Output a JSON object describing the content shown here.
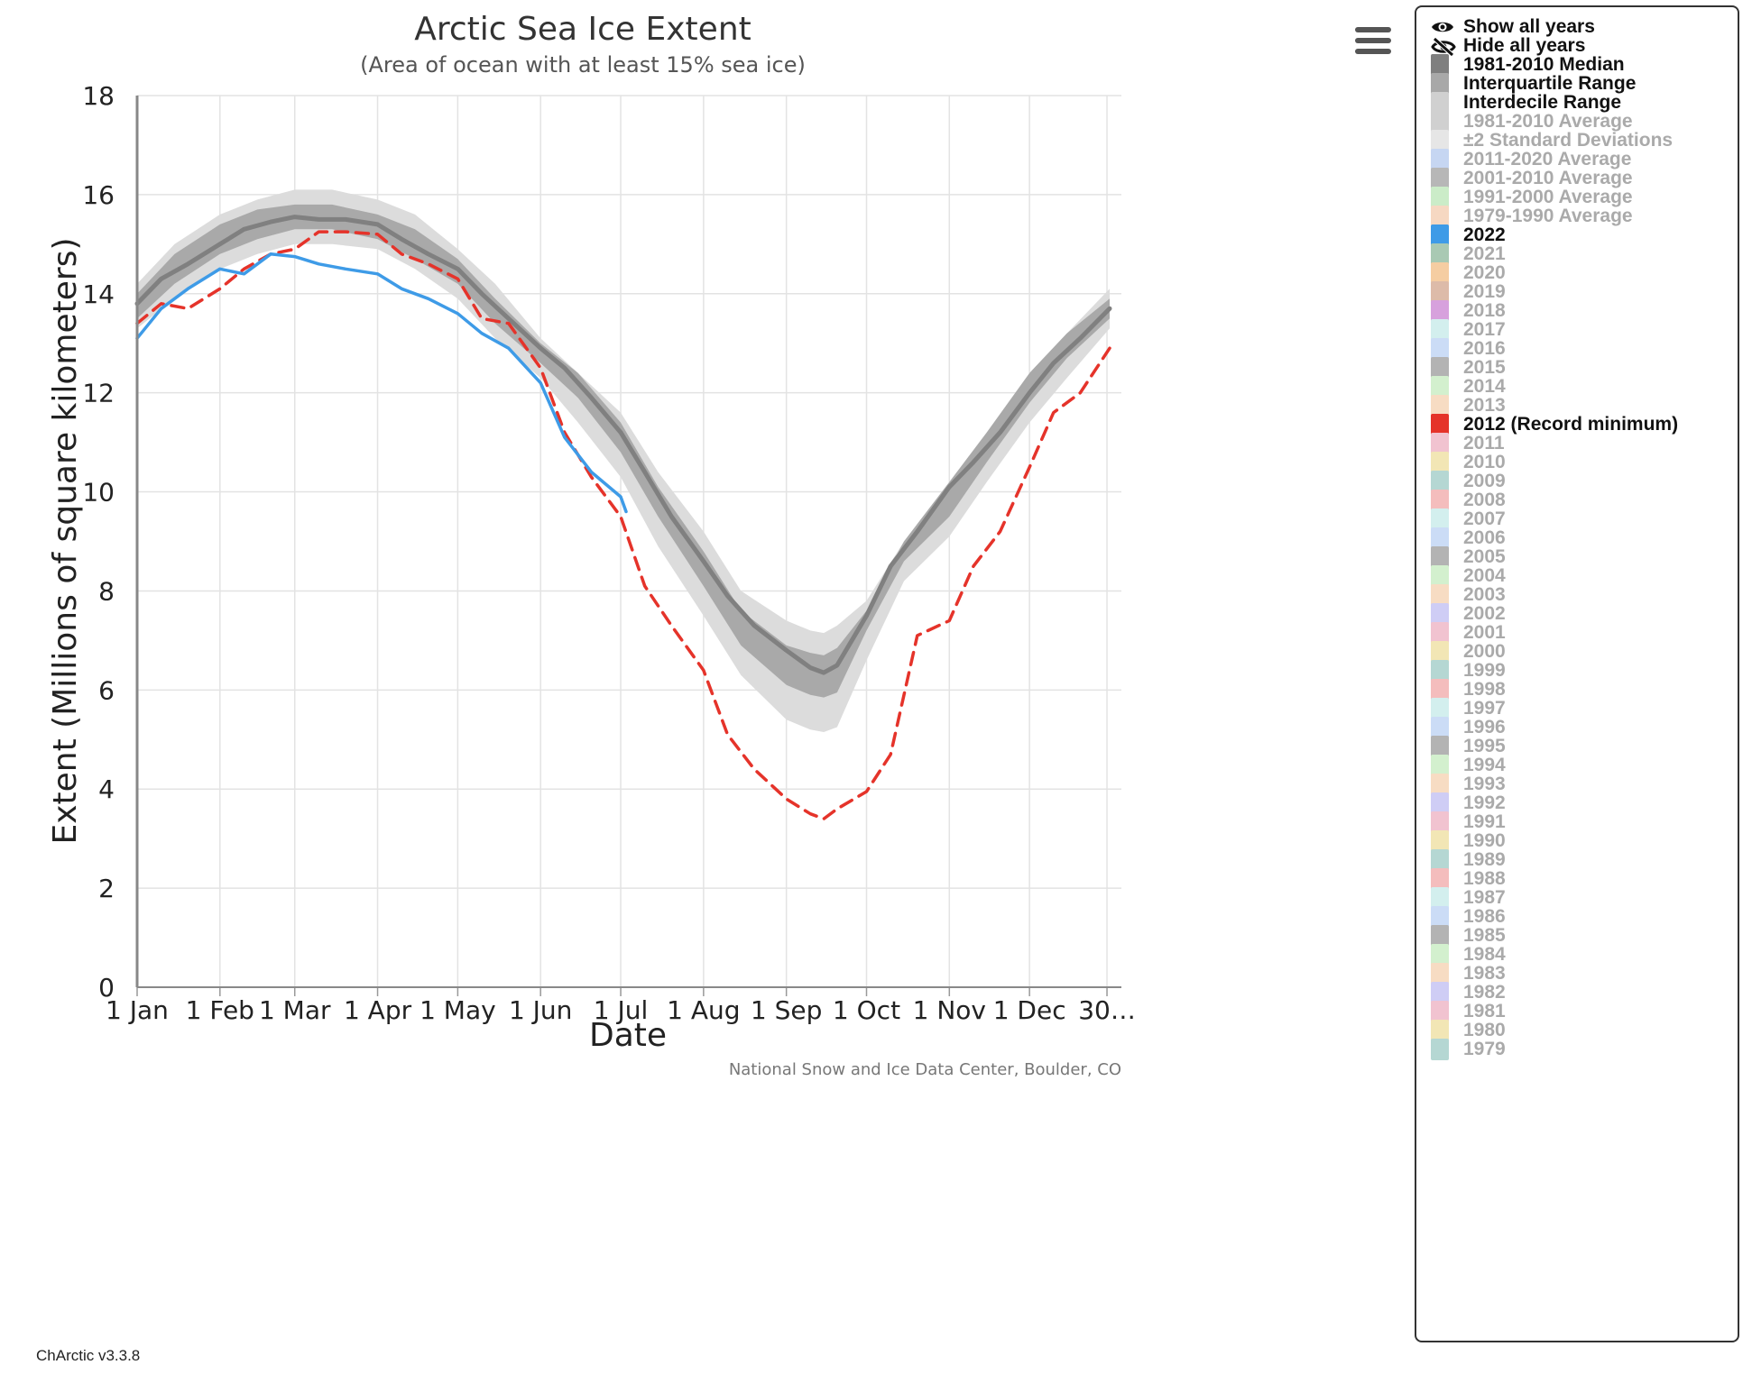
{
  "menu_icon": "hamburger-menu-icon",
  "version": "ChArctic v3.3.8",
  "credit": "National Snow and Ice Data Center, Boulder, CO",
  "legend": {
    "show_all": "Show all years",
    "hide_all": "Hide all years",
    "show_icon": "eye-icon",
    "hide_icon": "eye-slash-icon",
    "items": [
      {
        "label": "1981-2010 Median",
        "color": "#7f7f7f",
        "active": true
      },
      {
        "label": "Interquartile Range",
        "color": "#a8a8a8",
        "active": true
      },
      {
        "label": "Interdecile Range",
        "color": "#d0d0d0",
        "active": true
      },
      {
        "label": "1981-2010 Average",
        "color": "#d0d0d0",
        "active": false
      },
      {
        "label": "±2 Standard Deviations",
        "color": "#e6e6e6",
        "active": false
      },
      {
        "label": "2011-2020 Average",
        "color": "#c6d6f2",
        "active": false
      },
      {
        "label": "2001-2010 Average",
        "color": "#b7b7b7",
        "active": false
      },
      {
        "label": "1991-2000 Average",
        "color": "#cbecc8",
        "active": false
      },
      {
        "label": "1979-1990 Average",
        "color": "#f6d8c2",
        "active": false
      },
      {
        "label": "2022",
        "color": "#3e9be7",
        "active": true
      },
      {
        "label": "2021",
        "color": "#a9c9b3",
        "active": false
      },
      {
        "label": "2020",
        "color": "#f5cda2",
        "active": false
      },
      {
        "label": "2019",
        "color": "#ddbba9",
        "active": false
      },
      {
        "label": "2018",
        "color": "#d7a1dd",
        "active": false
      },
      {
        "label": "2017",
        "color": "#d3efee",
        "active": false
      },
      {
        "label": "2016",
        "color": "#cbdcf6",
        "active": false
      },
      {
        "label": "2015",
        "color": "#b3b3b3",
        "active": false
      },
      {
        "label": "2014",
        "color": "#d3f0ce",
        "active": false
      },
      {
        "label": "2013",
        "color": "#f7dcc3",
        "active": false
      },
      {
        "label": "2012 (Record minimum)",
        "color": "#e5332a",
        "active": true
      },
      {
        "label": "2011",
        "color": "#f1c3d0",
        "active": false
      },
      {
        "label": "2010",
        "color": "#f2e6b5",
        "active": false
      },
      {
        "label": "2009",
        "color": "#b5d7d3",
        "active": false
      },
      {
        "label": "2008",
        "color": "#f4bdbd",
        "active": false
      },
      {
        "label": "2007",
        "color": "#d3efee",
        "active": false
      },
      {
        "label": "2006",
        "color": "#cbdcf6",
        "active": false
      },
      {
        "label": "2005",
        "color": "#b3b3b3",
        "active": false
      },
      {
        "label": "2004",
        "color": "#d3f0ce",
        "active": false
      },
      {
        "label": "2003",
        "color": "#f7dcc3",
        "active": false
      },
      {
        "label": "2002",
        "color": "#cfcdf5",
        "active": false
      },
      {
        "label": "2001",
        "color": "#f1c3d0",
        "active": false
      },
      {
        "label": "2000",
        "color": "#f2e6b5",
        "active": false
      },
      {
        "label": "1999",
        "color": "#b5d7d3",
        "active": false
      },
      {
        "label": "1998",
        "color": "#f4bdbd",
        "active": false
      },
      {
        "label": "1997",
        "color": "#d3efee",
        "active": false
      },
      {
        "label": "1996",
        "color": "#cbdcf6",
        "active": false
      },
      {
        "label": "1995",
        "color": "#b3b3b3",
        "active": false
      },
      {
        "label": "1994",
        "color": "#d3f0ce",
        "active": false
      },
      {
        "label": "1993",
        "color": "#f7dcc3",
        "active": false
      },
      {
        "label": "1992",
        "color": "#cfcdf5",
        "active": false
      },
      {
        "label": "1991",
        "color": "#f1c3d0",
        "active": false
      },
      {
        "label": "1990",
        "color": "#f2e6b5",
        "active": false
      },
      {
        "label": "1989",
        "color": "#b5d7d3",
        "active": false
      },
      {
        "label": "1988",
        "color": "#f4bdbd",
        "active": false
      },
      {
        "label": "1987",
        "color": "#d3efee",
        "active": false
      },
      {
        "label": "1986",
        "color": "#cbdcf6",
        "active": false
      },
      {
        "label": "1985",
        "color": "#b3b3b3",
        "active": false
      },
      {
        "label": "1984",
        "color": "#d3f0ce",
        "active": false
      },
      {
        "label": "1983",
        "color": "#f7dcc3",
        "active": false
      },
      {
        "label": "1982",
        "color": "#cfcdf5",
        "active": false
      },
      {
        "label": "1981",
        "color": "#f1c3d0",
        "active": false
      },
      {
        "label": "1980",
        "color": "#f2e6b5",
        "active": false
      },
      {
        "label": "1979",
        "color": "#b5d7d3",
        "active": false
      }
    ]
  },
  "chart_data": {
    "type": "line",
    "title": "Arctic Sea Ice Extent",
    "subtitle": "(Area of ocean with at least 15% sea ice)",
    "xlabel": "Date",
    "ylabel": "Extent (Millions of square kilometers)",
    "ylim": [
      0,
      18
    ],
    "yticks": [
      0,
      2,
      4,
      6,
      8,
      10,
      12,
      14,
      16,
      18
    ],
    "x_ticks": [
      {
        "label": "1 Jan",
        "date": "01-01"
      },
      {
        "label": "1 Feb",
        "date": "02-01"
      },
      {
        "label": "1 Mar",
        "date": "03-01"
      },
      {
        "label": "1 Apr",
        "date": "04-01"
      },
      {
        "label": "1 May",
        "date": "05-01"
      },
      {
        "label": "1 Jun",
        "date": "06-01"
      },
      {
        "label": "1 Jul",
        "date": "07-01"
      },
      {
        "label": "1 Aug",
        "date": "08-01"
      },
      {
        "label": "1 Sep",
        "date": "09-01"
      },
      {
        "label": "1 Oct",
        "date": "10-01"
      },
      {
        "label": "1 Nov",
        "date": "11-01"
      },
      {
        "label": "1 Dec",
        "date": "12-01"
      },
      {
        "label": "30…",
        "date": "12-30"
      }
    ],
    "grid": true,
    "legend_placement": "right",
    "series": [
      {
        "name": "Interdecile Range",
        "kind": "band",
        "color": "#dcdcdc",
        "x": [
          "01-01",
          "01-15",
          "02-01",
          "02-15",
          "03-01",
          "03-15",
          "04-01",
          "04-15",
          "05-01",
          "05-15",
          "06-01",
          "06-15",
          "07-01",
          "07-15",
          "08-01",
          "08-15",
          "09-01",
          "09-10",
          "09-15",
          "09-20",
          "10-01",
          "10-15",
          "11-01",
          "11-15",
          "12-01",
          "12-15",
          "12-31"
        ],
        "low": [
          13.3,
          13.9,
          14.5,
          14.8,
          15.0,
          15.0,
          14.9,
          14.5,
          13.9,
          13.1,
          12.3,
          11.4,
          10.3,
          8.9,
          7.5,
          6.3,
          5.4,
          5.2,
          5.15,
          5.25,
          6.6,
          8.2,
          9.1,
          10.2,
          11.4,
          12.3,
          13.3
        ],
        "high": [
          14.2,
          15.0,
          15.6,
          15.9,
          16.1,
          16.1,
          15.9,
          15.6,
          14.9,
          14.2,
          13.1,
          12.4,
          11.6,
          10.4,
          9.2,
          8.0,
          7.4,
          7.2,
          7.15,
          7.3,
          7.8,
          9.0,
          10.2,
          11.2,
          12.4,
          13.2,
          14.1
        ]
      },
      {
        "name": "Interquartile Range",
        "kind": "band",
        "color": "#a9a9a9",
        "x": [
          "01-01",
          "01-15",
          "02-01",
          "02-15",
          "03-01",
          "03-15",
          "04-01",
          "04-15",
          "05-01",
          "05-15",
          "06-01",
          "06-15",
          "07-01",
          "07-15",
          "08-01",
          "08-15",
          "09-01",
          "09-10",
          "09-15",
          "09-20",
          "10-01",
          "10-15",
          "11-01",
          "11-15",
          "12-01",
          "12-15",
          "12-31"
        ],
        "low": [
          13.5,
          14.2,
          14.8,
          15.1,
          15.3,
          15.3,
          15.1,
          14.7,
          14.2,
          13.4,
          12.6,
          11.9,
          10.8,
          9.5,
          8.1,
          6.9,
          6.1,
          5.9,
          5.85,
          5.95,
          7.2,
          8.6,
          9.5,
          10.6,
          11.8,
          12.7,
          13.5
        ],
        "high": [
          14.0,
          14.8,
          15.4,
          15.7,
          15.8,
          15.8,
          15.6,
          15.3,
          14.7,
          13.9,
          13.0,
          12.4,
          11.4,
          10.1,
          8.8,
          7.6,
          6.9,
          6.75,
          6.7,
          6.85,
          7.6,
          9.0,
          10.2,
          11.2,
          12.4,
          13.2,
          13.9
        ]
      },
      {
        "name": "1981-2010 Median",
        "kind": "line",
        "color": "#808080",
        "x": [
          "01-01",
          "01-10",
          "01-20",
          "02-01",
          "02-10",
          "02-20",
          "03-01",
          "03-10",
          "03-20",
          "04-01",
          "04-10",
          "04-20",
          "05-01",
          "05-10",
          "05-20",
          "06-01",
          "06-10",
          "06-20",
          "07-01",
          "07-10",
          "07-20",
          "08-01",
          "08-10",
          "08-20",
          "09-01",
          "09-10",
          "09-15",
          "09-20",
          "10-01",
          "10-10",
          "10-20",
          "11-01",
          "11-10",
          "11-20",
          "12-01",
          "12-10",
          "12-20",
          "12-31"
        ],
        "y": [
          13.8,
          14.3,
          14.6,
          15.0,
          15.3,
          15.45,
          15.55,
          15.5,
          15.5,
          15.4,
          15.1,
          14.8,
          14.5,
          14.0,
          13.5,
          12.9,
          12.5,
          11.9,
          11.2,
          10.4,
          9.5,
          8.6,
          7.9,
          7.3,
          6.8,
          6.45,
          6.35,
          6.5,
          7.5,
          8.5,
          9.2,
          10.1,
          10.6,
          11.2,
          12.0,
          12.6,
          13.1,
          13.7
        ]
      },
      {
        "name": "2012 (Record minimum)",
        "kind": "line",
        "dash": true,
        "color": "#e5332a",
        "x": [
          "01-01",
          "01-10",
          "01-20",
          "02-01",
          "02-10",
          "02-20",
          "03-01",
          "03-10",
          "03-20",
          "04-01",
          "04-10",
          "04-20",
          "05-01",
          "05-10",
          "05-20",
          "06-01",
          "06-10",
          "06-20",
          "07-01",
          "07-10",
          "07-20",
          "08-01",
          "08-10",
          "08-20",
          "09-01",
          "09-10",
          "09-15",
          "09-20",
          "10-01",
          "10-10",
          "10-20",
          "11-01",
          "11-10",
          "11-20",
          "12-01",
          "12-10",
          "12-20",
          "12-31"
        ],
        "y": [
          13.4,
          13.8,
          13.7,
          14.1,
          14.5,
          14.8,
          14.9,
          15.25,
          15.25,
          15.2,
          14.8,
          14.6,
          14.3,
          13.5,
          13.4,
          12.5,
          11.2,
          10.3,
          9.5,
          8.1,
          7.3,
          6.4,
          5.1,
          4.4,
          3.8,
          3.5,
          3.4,
          3.6,
          3.95,
          4.7,
          7.1,
          7.4,
          8.5,
          9.2,
          10.5,
          11.6,
          12.0,
          12.9
        ]
      },
      {
        "name": "2022",
        "kind": "line",
        "color": "#3e9be7",
        "x": [
          "01-01",
          "01-10",
          "01-20",
          "02-01",
          "02-10",
          "02-20",
          "03-01",
          "03-10",
          "03-20",
          "04-01",
          "04-10",
          "04-20",
          "05-01",
          "05-10",
          "05-20",
          "06-01",
          "06-10",
          "06-20",
          "07-01",
          "07-03"
        ],
        "y": [
          13.1,
          13.7,
          14.1,
          14.5,
          14.4,
          14.8,
          14.75,
          14.6,
          14.5,
          14.4,
          14.1,
          13.9,
          13.6,
          13.2,
          12.9,
          12.2,
          11.1,
          10.4,
          9.9,
          9.6
        ]
      }
    ]
  }
}
